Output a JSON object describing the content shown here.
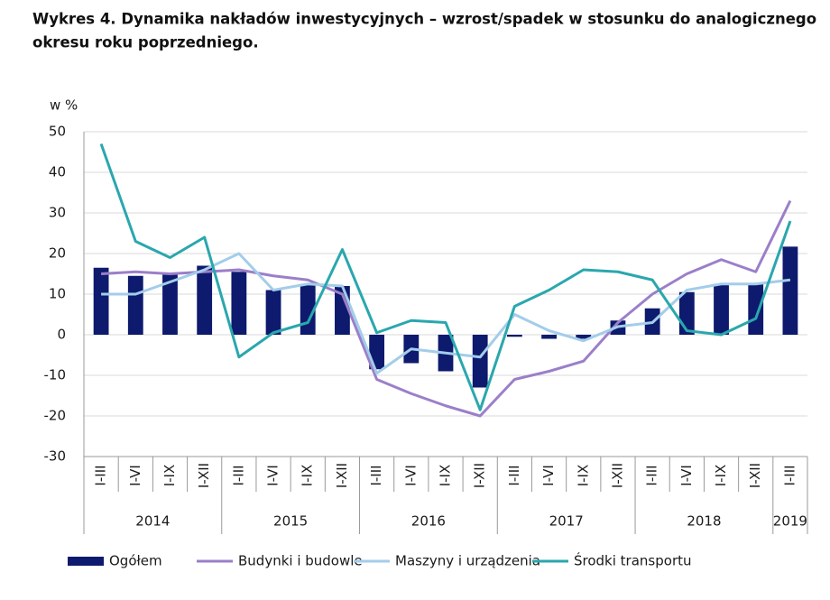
{
  "chart_data": {
    "type": "bar",
    "title": [
      "Wykres 4. Dynamika nakładów inwestycyjnych – wzrost/spadek w stosunku do analogicznego",
      "okresu roku poprzedniego."
    ],
    "y_label": "w %",
    "categories": [
      "I-III",
      "I-VI",
      "I-IX",
      "I-XII",
      "I-III",
      "I-VI",
      "I-IX",
      "I-XII",
      "I-III",
      "I-VI",
      "I-IX",
      "I-XII",
      "I-III",
      "I-VI",
      "I-IX",
      "I-XII",
      "I-III",
      "I-VI",
      "I-IX",
      "I-XII",
      "I-III"
    ],
    "years": [
      "2014",
      "2015",
      "2016",
      "2017",
      "2018",
      "2019"
    ],
    "series": [
      {
        "name": "Ogółem",
        "type": "bar",
        "color": "#0d1a6e",
        "values": [
          16.5,
          14.5,
          15,
          17,
          15.5,
          11,
          12.5,
          12,
          -8.5,
          -7,
          -9,
          -13,
          -0.5,
          -1,
          -1,
          3.5,
          6.5,
          10.5,
          12.5,
          12.5,
          21.7
        ]
      },
      {
        "name": "Budynki i budowle",
        "type": "line",
        "color": "#9b7fc9",
        "values": [
          15,
          15.5,
          15,
          15.5,
          16,
          14.5,
          13.5,
          10,
          -11,
          -14.5,
          -17.5,
          -20,
          -11,
          -9,
          -6.5,
          3,
          10,
          15,
          18.5,
          15.5,
          33
        ]
      },
      {
        "name": "Maszyny i urządzenia",
        "type": "line",
        "color": "#a3cdea",
        "values": [
          10,
          10,
          13,
          16,
          20,
          11,
          12.5,
          12,
          -9.5,
          -3.5,
          -4.5,
          -5.5,
          5,
          1,
          -1.5,
          2,
          3,
          11,
          12.5,
          12.5,
          13.5
        ]
      },
      {
        "name": "Środki transportu",
        "type": "line",
        "color": "#2aa7ad",
        "values": [
          47,
          23,
          19,
          24,
          -5.5,
          0.5,
          3,
          21,
          0.5,
          3.5,
          3,
          -18.5,
          7,
          11,
          16,
          15.5,
          13.5,
          1,
          0,
          4,
          28
        ]
      }
    ],
    "ylim": [
      -30,
      50
    ],
    "yticks": [
      50,
      40,
      30,
      20,
      10,
      0,
      -10,
      -20,
      -30
    ],
    "grid": true
  }
}
